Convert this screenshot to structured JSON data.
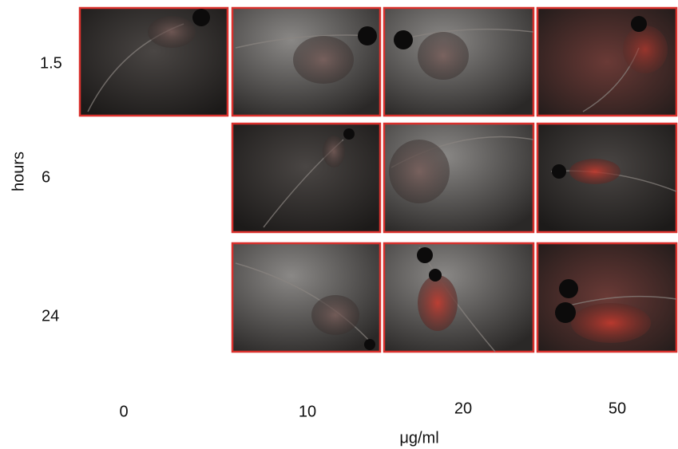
{
  "y_axis_label": "hours",
  "rows": [
    "1.5",
    "6",
    "24"
  ],
  "x_axis_label": "μg/ml",
  "columns": [
    "0",
    "10",
    "20",
    "50"
  ]
}
